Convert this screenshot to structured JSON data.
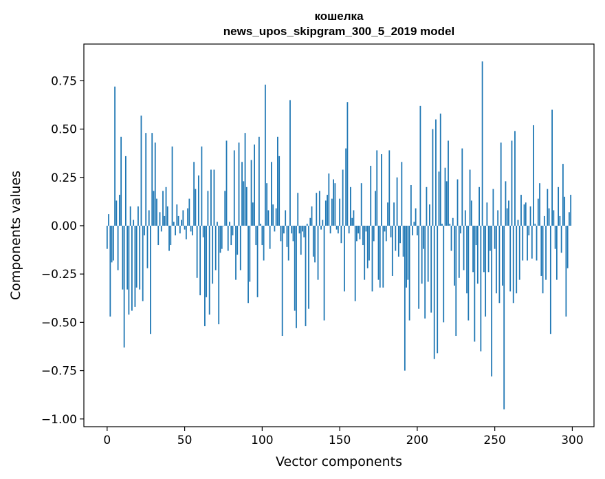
{
  "chart_data": {
    "type": "bar",
    "title": "кошелка",
    "subtitle": "news_upos_skipgram_300_5_2019 model",
    "xlabel": "Vector components",
    "ylabel": "Components values",
    "xlim": [
      -15,
      314
    ],
    "ylim": [
      -1.04,
      0.94
    ],
    "xticks": [
      0,
      50,
      100,
      150,
      200,
      250,
      300
    ],
    "yticks": [
      -1.0,
      -0.75,
      -0.5,
      -0.25,
      0.0,
      0.25,
      0.5,
      0.75
    ],
    "ytick_labels": [
      "−1.00",
      "−0.75",
      "−0.50",
      "−0.25",
      "0.00",
      "0.25",
      "0.50",
      "0.75"
    ],
    "bar_color": "#1f77b4",
    "x": "indices 0..299",
    "values": [
      -0.12,
      0.06,
      -0.47,
      -0.19,
      -0.18,
      0.72,
      0.13,
      -0.23,
      0.16,
      0.46,
      -0.33,
      -0.63,
      0.36,
      -0.33,
      -0.46,
      0.1,
      -0.44,
      0.03,
      -0.42,
      -0.32,
      0.1,
      -0.33,
      0.57,
      -0.39,
      -0.05,
      0.48,
      -0.22,
      0.08,
      -0.56,
      0.48,
      0.18,
      0.43,
      0.14,
      -0.1,
      0.07,
      -0.03,
      0.18,
      0.05,
      0.2,
      0.1,
      -0.13,
      -0.1,
      0.41,
      0.02,
      -0.05,
      0.11,
      0.05,
      -0.04,
      0.03,
      0.08,
      -0.02,
      -0.07,
      0.09,
      0.14,
      -0.03,
      -0.05,
      0.33,
      0.19,
      -0.27,
      0.26,
      -0.36,
      0.41,
      -0.06,
      -0.52,
      -0.37,
      0.18,
      -0.46,
      0.29,
      -0.3,
      0.29,
      -0.23,
      0.02,
      -0.51,
      -0.14,
      -0.12,
      0.0,
      0.18,
      0.44,
      -0.13,
      0.02,
      -0.1,
      -0.05,
      0.39,
      -0.28,
      -0.15,
      0.43,
      -0.23,
      0.33,
      0.23,
      0.48,
      0.2,
      -0.4,
      -0.29,
      0.34,
      0.12,
      0.42,
      -0.1,
      -0.37,
      0.46,
      0.01,
      -0.1,
      -0.18,
      0.73,
      0.22,
      0.08,
      -0.12,
      0.33,
      0.11,
      -0.03,
      0.09,
      0.46,
      0.36,
      -0.08,
      -0.57,
      -0.04,
      0.08,
      -0.11,
      -0.18,
      0.65,
      -0.04,
      -0.08,
      -0.44,
      -0.53,
      0.17,
      -0.04,
      -0.15,
      -0.03,
      -0.06,
      -0.52,
      0.01,
      -0.43,
      0.04,
      0.1,
      -0.16,
      -0.19,
      0.17,
      -0.28,
      0.18,
      -0.02,
      0.03,
      -0.49,
      0.13,
      0.16,
      0.27,
      -0.04,
      0.14,
      0.24,
      0.22,
      -0.02,
      -0.04,
      0.14,
      -0.09,
      0.29,
      -0.34,
      0.4,
      0.64,
      -0.04,
      0.2,
      0.04,
      0.08,
      -0.39,
      -0.08,
      -0.04,
      -0.07,
      0.22,
      -0.1,
      -0.28,
      -0.03,
      -0.22,
      -0.18,
      0.31,
      -0.34,
      -0.08,
      0.18,
      0.39,
      -0.28,
      -0.32,
      0.37,
      -0.32,
      -0.03,
      -0.08,
      0.12,
      0.39,
      -0.06,
      -0.26,
      0.12,
      -0.13,
      0.25,
      -0.16,
      -0.09,
      0.33,
      -0.16,
      -0.75,
      -0.32,
      -0.28,
      -0.49,
      0.21,
      -0.05,
      0.02,
      0.09,
      -0.05,
      -0.43,
      0.62,
      -0.3,
      -0.12,
      -0.48,
      0.2,
      -0.29,
      0.11,
      -0.45,
      0.5,
      -0.69,
      0.55,
      -0.66,
      0.28,
      0.58,
      0.01,
      -0.5,
      0.3,
      0.23,
      0.44,
      0.01,
      -0.13,
      0.04,
      -0.31,
      -0.57,
      0.24,
      -0.27,
      -0.04,
      0.4,
      -0.23,
      0.08,
      -0.35,
      -0.49,
      0.29,
      0.13,
      -0.24,
      -0.6,
      -0.1,
      -0.3,
      0.2,
      -0.65,
      0.85,
      -0.24,
      -0.47,
      0.12,
      -0.24,
      -0.13,
      -0.78,
      0.19,
      -0.12,
      -0.35,
      0.08,
      -0.4,
      0.43,
      -0.31,
      -0.95,
      0.23,
      0.09,
      0.13,
      -0.34,
      0.44,
      -0.4,
      0.49,
      -0.35,
      0.03,
      -0.28,
      0.16,
      -0.18,
      0.11,
      0.12,
      -0.18,
      -0.05,
      0.1,
      -0.17,
      0.52,
      0.01,
      -0.18,
      0.14,
      0.22,
      -0.26,
      -0.35,
      0.05,
      -0.28,
      0.19,
      0.09,
      -0.56,
      0.6,
      0.08,
      -0.12,
      -0.28,
      0.2,
      0.05,
      -0.14,
      0.32,
      0.15,
      -0.47,
      -0.22,
      0.07,
      0.16
    ]
  }
}
